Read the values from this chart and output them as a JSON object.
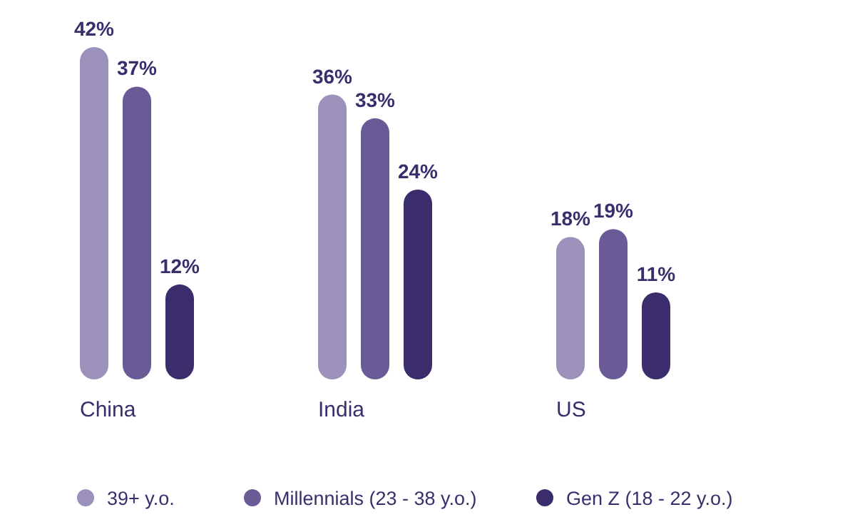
{
  "chart_data": {
    "type": "bar",
    "categories": [
      "China",
      "India",
      "US"
    ],
    "series": [
      {
        "name": "39+ y.o.",
        "color": "#9b91bb",
        "values": [
          42,
          36,
          18
        ],
        "value_labels": [
          "42%",
          "36%",
          "18%"
        ]
      },
      {
        "name": "Millennials (23 - 38 y.o.)",
        "color": "#6a5a96",
        "values": [
          37,
          33,
          19
        ],
        "value_labels": [
          "37%",
          "33%",
          "19%"
        ]
      },
      {
        "name": "Gen Z (18 - 22 y.o.)",
        "color": "#3b2d6c",
        "values": [
          12,
          24,
          11
        ],
        "value_labels": [
          "12%",
          "24%",
          "11%"
        ]
      }
    ],
    "legend": "bottom",
    "grid": false
  }
}
